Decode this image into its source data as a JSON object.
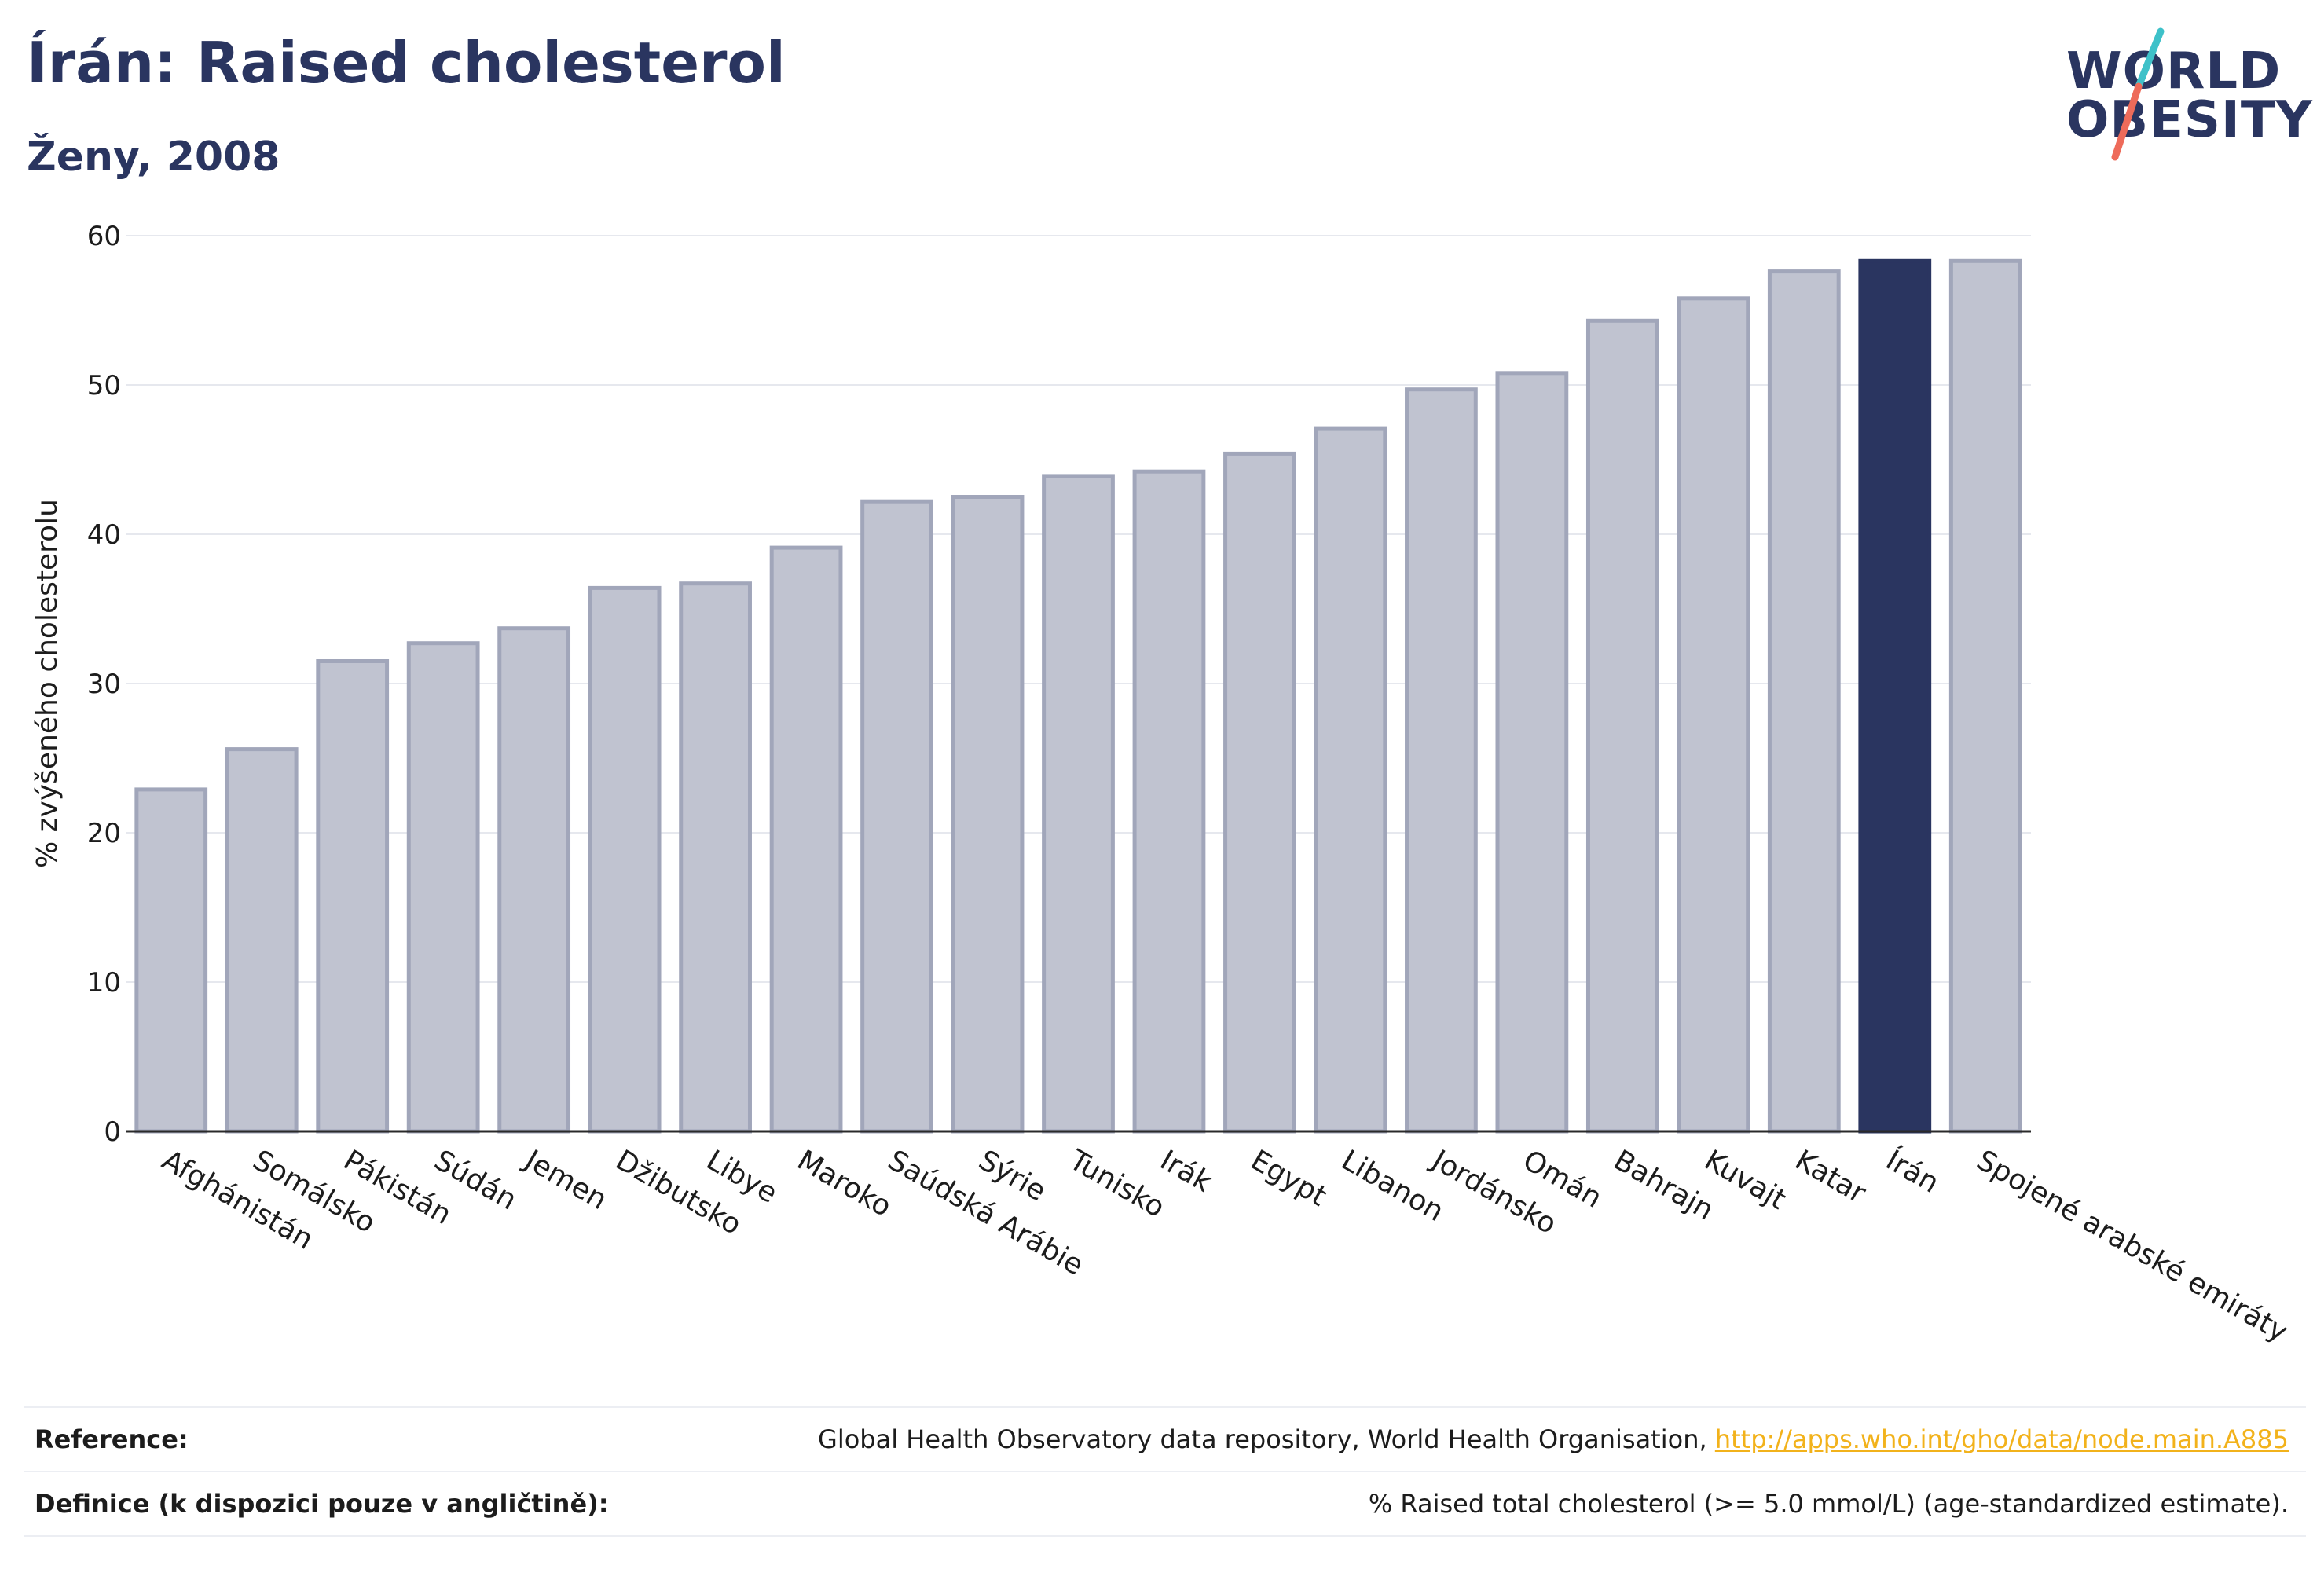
{
  "header": {
    "title": "Írán: Raised cholesterol",
    "subtitle": "Ženy, 2008"
  },
  "logo": {
    "line1": "WORLD",
    "line2": "OBESITY",
    "slash_color_top": "#3ec1c9",
    "slash_color_bottom": "#ee6b5a"
  },
  "colors": {
    "bar": "#c0c3d0",
    "bar_border": "#a1a6ba",
    "highlight": "#2a3560"
  },
  "chart_data": {
    "type": "bar",
    "ylabel": "% zvýšeného cholesterolu",
    "ylim": [
      0,
      60
    ],
    "yticks": [
      0,
      10,
      20,
      30,
      40,
      50,
      60
    ],
    "grid": true,
    "highlight_category": "Írán",
    "categories": [
      "Afghánistán",
      "Somálsko",
      "Pákistán",
      "Súdán",
      "Jemen",
      "Džibutsko",
      "Libye",
      "Maroko",
      "Saúdská Arábie",
      "Sýrie",
      "Tunisko",
      "Irák",
      "Egypt",
      "Libanon",
      "Jordánsko",
      "Omán",
      "Bahrajn",
      "Kuvajt",
      "Katar",
      "Írán",
      "Spojené arabské emiráty"
    ],
    "values": [
      22.9,
      25.6,
      31.5,
      32.7,
      33.7,
      36.4,
      36.7,
      39.1,
      42.2,
      42.5,
      43.9,
      44.2,
      45.4,
      47.1,
      49.7,
      50.8,
      54.3,
      55.8,
      57.6,
      58.3,
      58.3
    ]
  },
  "footer": {
    "reference_label": "Reference:",
    "reference_text": "Global Health Observatory data repository, World Health Organisation,",
    "reference_link": "http://apps.who.int/gho/data/node.main.A885",
    "definition_label": "Definice (k dispozici pouze v angličtině):",
    "definition_text": "% Raised total cholesterol (>= 5.0 mmol/L) (age-standardized estimate)."
  }
}
